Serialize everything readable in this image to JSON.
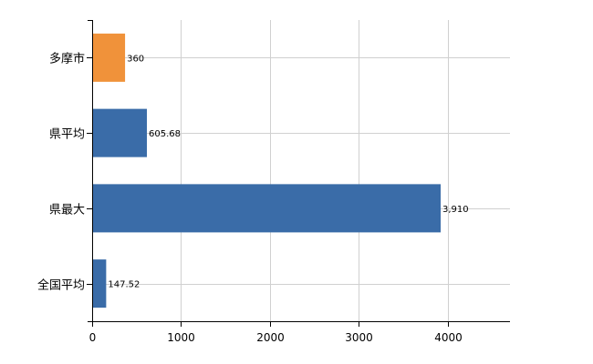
{
  "chart_data": {
    "type": "bar",
    "orientation": "horizontal",
    "categories": [
      "多摩市",
      "県平均",
      "県最大",
      "全国平均"
    ],
    "values": [
      360,
      605.68,
      3910,
      147.52
    ],
    "data_labels": [
      "360",
      "605.68",
      "3,910",
      "147.52"
    ],
    "colors": [
      "#f0923a",
      "#3a6ca8",
      "#3a6ca8",
      "#3a6ca8"
    ],
    "xlim": [
      0,
      4700
    ],
    "xticks": [
      0,
      1000,
      2000,
      3000,
      4000
    ],
    "xtick_labels": [
      "0",
      "1000",
      "2000",
      "3000",
      "4000"
    ],
    "grid": true,
    "legend": false
  }
}
